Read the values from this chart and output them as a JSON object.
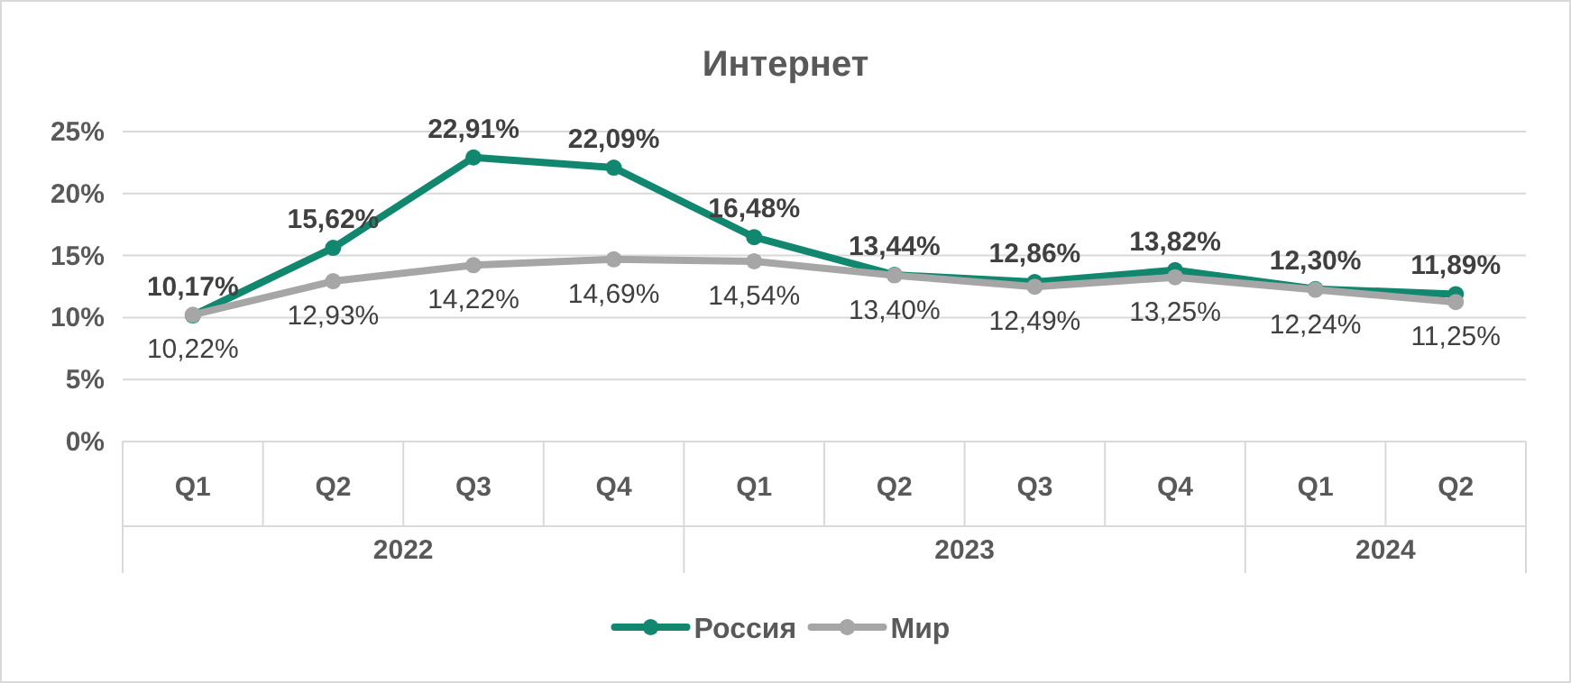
{
  "chart_data": {
    "type": "line",
    "title": "Интернет",
    "categories": [
      "Q1",
      "Q2",
      "Q3",
      "Q4",
      "Q1",
      "Q2",
      "Q3",
      "Q4",
      "Q1",
      "Q2"
    ],
    "annotations": [
      "2022",
      "2023",
      "2024"
    ],
    "series": [
      {
        "name": "Россия",
        "color": "#12876f",
        "values": [
          10.17,
          15.62,
          22.91,
          22.09,
          16.48,
          13.44,
          12.86,
          13.82,
          12.3,
          11.89
        ],
        "value_labels": [
          "10,17%",
          "15,62%",
          "22,91%",
          "22,09%",
          "16,48%",
          "13,44%",
          "12,86%",
          "13,82%",
          "12,30%",
          "11,89%"
        ]
      },
      {
        "name": "Мир",
        "color": "#a6a6a6",
        "values": [
          10.22,
          12.93,
          14.22,
          14.69,
          14.54,
          13.4,
          12.49,
          13.25,
          12.24,
          11.25
        ],
        "value_labels": [
          "10,22%",
          "12,93%",
          "14,22%",
          "14,69%",
          "14,54%",
          "13,40%",
          "12,49%",
          "13,25%",
          "12,24%",
          "11,25%"
        ]
      }
    ],
    "ylim": [
      0,
      25
    ],
    "yticks": [
      {
        "value": 0,
        "label": "0%"
      },
      {
        "value": 5,
        "label": "5%"
      },
      {
        "value": 10,
        "label": "10%"
      },
      {
        "value": 15,
        "label": "15%"
      },
      {
        "value": 20,
        "label": "20%"
      },
      {
        "value": 25,
        "label": "25%"
      }
    ],
    "grid": "y",
    "legend": "bottom",
    "marker": "circle",
    "line_style": "solid"
  }
}
